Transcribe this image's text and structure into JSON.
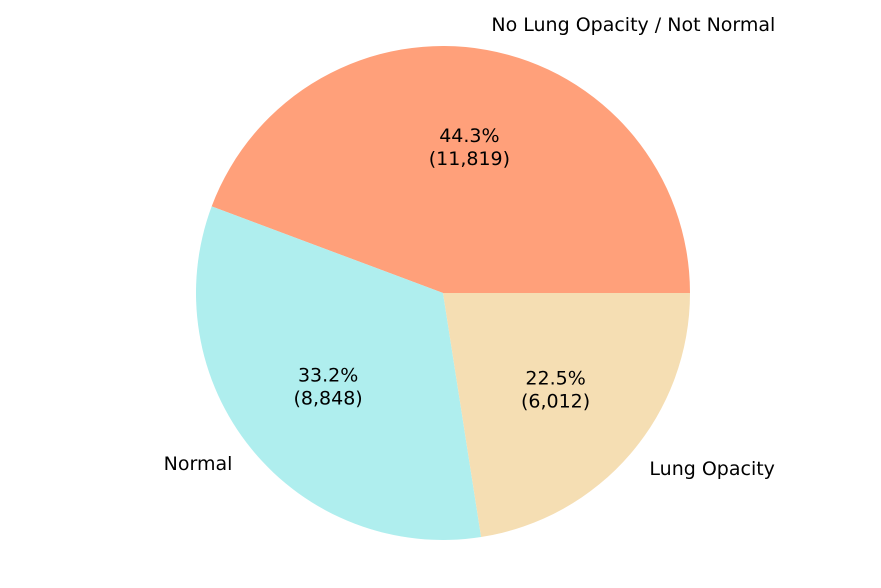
{
  "chart_data": {
    "type": "pie",
    "title": "",
    "slices": [
      {
        "label": "No Lung Opacity / Not Normal",
        "value": 11819,
        "percent": 44.3,
        "percent_text": "44.3%",
        "count_text": "(11,819)",
        "color": "#ffa07a"
      },
      {
        "label": "Normal",
        "value": 8848,
        "percent": 33.2,
        "percent_text": "33.2%",
        "count_text": "(8,848)",
        "color": "#afeeee"
      },
      {
        "label": "Lung Opacity",
        "value": 6012,
        "percent": 22.5,
        "percent_text": "22.5%",
        "count_text": "(6,012)",
        "color": "#f5deb3"
      }
    ],
    "start_angle_deg": 0,
    "direction": "counterclockwise",
    "legend": "none"
  }
}
